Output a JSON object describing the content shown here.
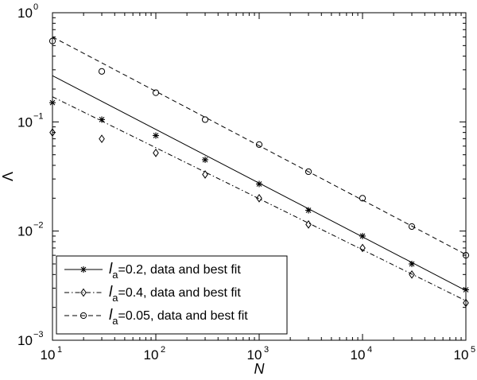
{
  "chart_data": {
    "type": "scatter",
    "x_scale": "log",
    "y_scale": "log",
    "xlim": [
      10,
      100000
    ],
    "ylim": [
      0.001,
      1
    ],
    "xlabel": "N",
    "ylabel": "Λ",
    "grid": false,
    "legend_position": "bottom-left",
    "x_ticks": [
      {
        "value": 10,
        "base": "10",
        "exp": "1"
      },
      {
        "value": 100,
        "base": "10",
        "exp": "2"
      },
      {
        "value": 1000,
        "base": "10",
        "exp": "3"
      },
      {
        "value": 10000,
        "base": "10",
        "exp": "4"
      },
      {
        "value": 100000,
        "base": "10",
        "exp": "5"
      }
    ],
    "y_ticks": [
      {
        "value": 0.001,
        "base": "10",
        "exp": "−3"
      },
      {
        "value": 0.01,
        "base": "10",
        "exp": "−2"
      },
      {
        "value": 0.1,
        "base": "10",
        "exp": "−1"
      },
      {
        "value": 1,
        "base": "10",
        "exp": "0"
      }
    ],
    "series": [
      {
        "name": "l_a=0.2, data and best fit",
        "label_symbol": "l",
        "label_sub": "a",
        "label_rest": "=0.2, data and best fit",
        "marker": "star",
        "line_style": "solid",
        "x": [
          10,
          30,
          100,
          300,
          1000,
          3000,
          10000,
          30000,
          100000
        ],
        "y": [
          0.15,
          0.105,
          0.075,
          0.045,
          0.027,
          0.0155,
          0.009,
          0.005,
          0.0029
        ],
        "fit": {
          "x": [
            10,
            100000
          ],
          "y": [
            0.265,
            0.00285
          ]
        }
      },
      {
        "name": "l_a=0.4, data and best fit",
        "label_symbol": "l",
        "label_sub": "a",
        "label_rest": "=0.4, data and best fit",
        "marker": "diamond",
        "line_style": "dashdot",
        "x": [
          10,
          30,
          100,
          300,
          1000,
          3000,
          10000,
          30000,
          100000
        ],
        "y": [
          0.08,
          0.07,
          0.052,
          0.033,
          0.02,
          0.0115,
          0.007,
          0.004,
          0.0022
        ],
        "fit": {
          "x": [
            10,
            100000
          ],
          "y": [
            0.17,
            0.0023
          ]
        }
      },
      {
        "name": "l_a=0.05, data and best fit",
        "label_symbol": "l",
        "label_sub": "a",
        "label_rest": "=0.05, data and best fit",
        "marker": "circle",
        "line_style": "dashed",
        "x": [
          10,
          30,
          100,
          300,
          1000,
          3000,
          10000,
          30000,
          100000
        ],
        "y": [
          0.55,
          0.29,
          0.185,
          0.105,
          0.062,
          0.035,
          0.02,
          0.011,
          0.006
        ],
        "fit": {
          "x": [
            10,
            100000
          ],
          "y": [
            0.6,
            0.0061
          ]
        }
      }
    ]
  }
}
